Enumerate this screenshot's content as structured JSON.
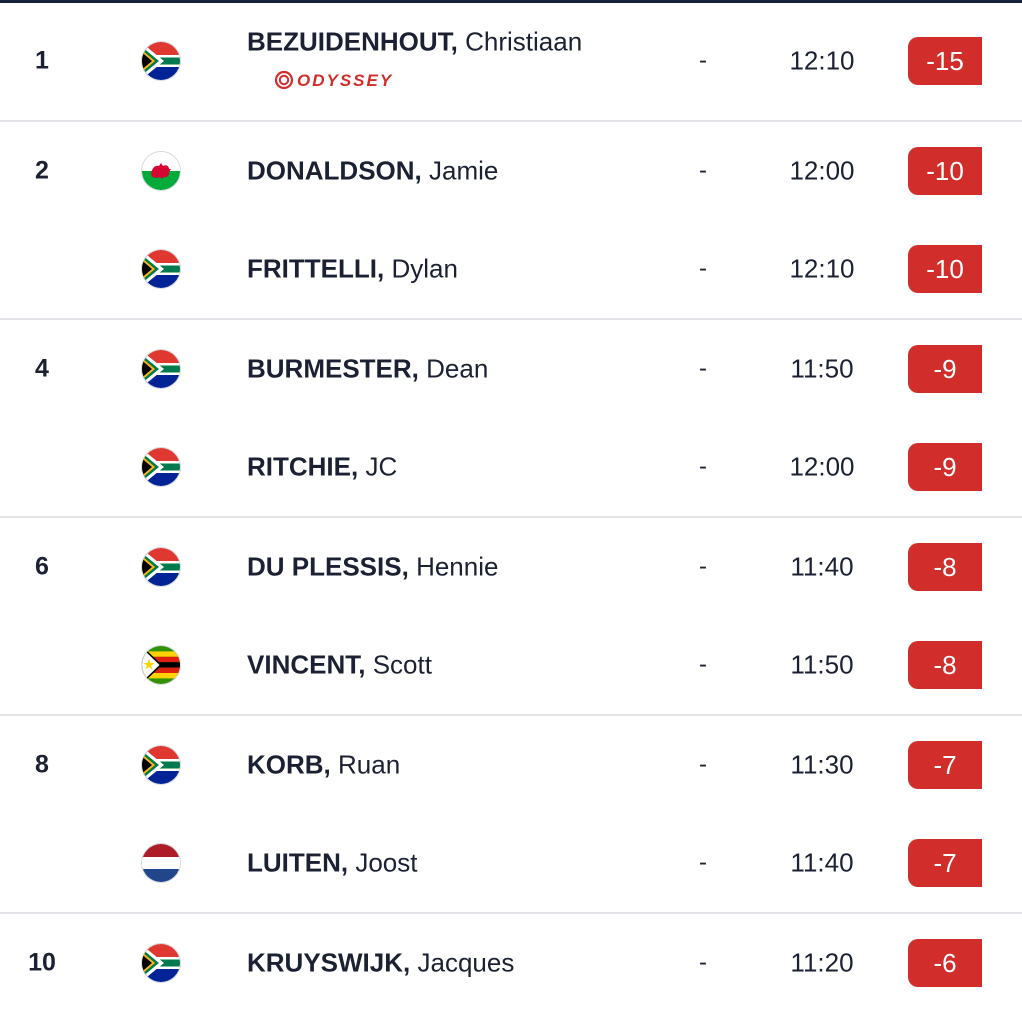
{
  "leaderboard": {
    "accent_color": "#d12d2a",
    "sponsor_text": "ODYSSEY",
    "rows": [
      {
        "position": "1",
        "flag_icon": "south-africa-flag-icon",
        "last_name": "BEZUIDENHOUT,",
        "first_name": "Christiaan",
        "thru": "-",
        "tee_time": "12:10",
        "score": "-15",
        "sponsor_icon": "odyssey-logo"
      },
      {
        "position": "2",
        "flag_icon": "wales-flag-icon",
        "last_name": "DONALDSON,",
        "first_name": "Jamie",
        "thru": "-",
        "tee_time": "12:00",
        "score": "-10"
      },
      {
        "position": "",
        "flag_icon": "south-africa-flag-icon",
        "last_name": "FRITTELLI,",
        "first_name": "Dylan",
        "thru": "-",
        "tee_time": "12:10",
        "score": "-10"
      },
      {
        "position": "4",
        "flag_icon": "south-africa-flag-icon",
        "last_name": "BURMESTER,",
        "first_name": "Dean",
        "thru": "-",
        "tee_time": "11:50",
        "score": "-9"
      },
      {
        "position": "",
        "flag_icon": "south-africa-flag-icon",
        "last_name": "RITCHIE,",
        "first_name": "JC",
        "thru": "-",
        "tee_time": "12:00",
        "score": "-9"
      },
      {
        "position": "6",
        "flag_icon": "south-africa-flag-icon",
        "last_name": "DU PLESSIS,",
        "first_name": "Hennie",
        "thru": "-",
        "tee_time": "11:40",
        "score": "-8"
      },
      {
        "position": "",
        "flag_icon": "zimbabwe-flag-icon",
        "last_name": "VINCENT,",
        "first_name": "Scott",
        "thru": "-",
        "tee_time": "11:50",
        "score": "-8"
      },
      {
        "position": "8",
        "flag_icon": "south-africa-flag-icon",
        "last_name": "KORB,",
        "first_name": "Ruan",
        "thru": "-",
        "tee_time": "11:30",
        "score": "-7"
      },
      {
        "position": "",
        "flag_icon": "netherlands-flag-icon",
        "last_name": "LUITEN,",
        "first_name": "Joost",
        "thru": "-",
        "tee_time": "11:40",
        "score": "-7"
      },
      {
        "position": "10",
        "flag_icon": "south-africa-flag-icon",
        "last_name": "KRUYSWIJK,",
        "first_name": "Jacques",
        "thru": "-",
        "tee_time": "11:20",
        "score": "-6"
      }
    ]
  }
}
